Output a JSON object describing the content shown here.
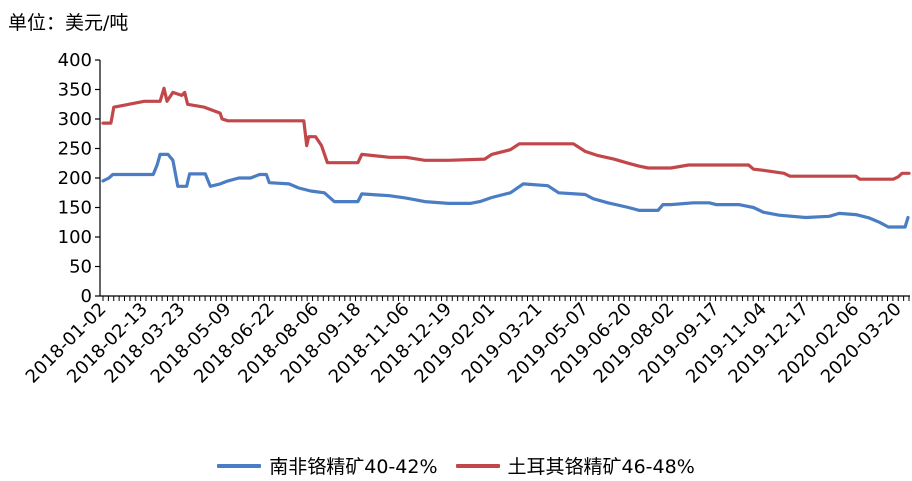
{
  "unit_label": "单位：美元/吨",
  "colors": {
    "series1": "#4a7dc4",
    "series2": "#c2474a",
    "axis": "#000000"
  },
  "chart_data": {
    "type": "line",
    "x_tick_labels": [
      "2018-01-02",
      "2018-02-13",
      "2018-03-23",
      "2018-05-09",
      "2018-06-22",
      "2018-08-06",
      "2018-09-18",
      "2018-11-06",
      "2018-12-19",
      "2019-02-01",
      "2019-03-21",
      "2019-05-07",
      "2019-06-20",
      "2019-08-02",
      "2019-09-17",
      "2019-11-04",
      "2019-12-17",
      "2020-02-06",
      "2020-03-20"
    ],
    "ylim": [
      0,
      400
    ],
    "y_ticks": [
      0,
      50,
      100,
      150,
      200,
      250,
      300,
      350,
      400
    ],
    "grid": false,
    "legend_position": "bottom",
    "series": [
      {
        "name": "南非铬精矿40-42%",
        "color": "#4a7dc4",
        "points": [
          [
            "2018-01-02",
            195
          ],
          [
            "2018-01-08",
            200
          ],
          [
            "2018-01-12",
            206
          ],
          [
            "2018-02-01",
            206
          ],
          [
            "2018-02-22",
            206
          ],
          [
            "2018-02-26",
            222
          ],
          [
            "2018-03-01",
            240
          ],
          [
            "2018-03-09",
            240
          ],
          [
            "2018-03-14",
            230
          ],
          [
            "2018-03-19",
            186
          ],
          [
            "2018-03-28",
            186
          ],
          [
            "2018-03-31",
            207
          ],
          [
            "2018-04-16",
            207
          ],
          [
            "2018-04-21",
            186
          ],
          [
            "2018-05-01",
            190
          ],
          [
            "2018-05-09",
            195
          ],
          [
            "2018-05-20",
            200
          ],
          [
            "2018-06-01",
            200
          ],
          [
            "2018-06-10",
            206
          ],
          [
            "2018-06-17",
            206
          ],
          [
            "2018-06-20",
            192
          ],
          [
            "2018-07-10",
            190
          ],
          [
            "2018-07-20",
            183
          ],
          [
            "2018-08-01",
            178
          ],
          [
            "2018-08-15",
            175
          ],
          [
            "2018-08-25",
            160
          ],
          [
            "2018-09-18",
            160
          ],
          [
            "2018-09-22",
            173
          ],
          [
            "2018-10-20",
            170
          ],
          [
            "2018-11-06",
            166
          ],
          [
            "2018-11-25",
            160
          ],
          [
            "2018-12-19",
            157
          ],
          [
            "2019-01-10",
            157
          ],
          [
            "2019-01-20",
            160
          ],
          [
            "2019-02-01",
            167
          ],
          [
            "2019-02-20",
            175
          ],
          [
            "2019-03-05",
            190
          ],
          [
            "2019-03-30",
            187
          ],
          [
            "2019-04-10",
            175
          ],
          [
            "2019-05-07",
            172
          ],
          [
            "2019-05-15",
            165
          ],
          [
            "2019-05-30",
            158
          ],
          [
            "2019-06-20",
            150
          ],
          [
            "2019-07-01",
            145
          ],
          [
            "2019-07-20",
            145
          ],
          [
            "2019-07-25",
            155
          ],
          [
            "2019-08-02",
            155
          ],
          [
            "2019-08-25",
            158
          ],
          [
            "2019-09-10",
            158
          ],
          [
            "2019-09-17",
            155
          ],
          [
            "2019-10-10",
            155
          ],
          [
            "2019-10-25",
            150
          ],
          [
            "2019-11-04",
            142
          ],
          [
            "2019-11-20",
            137
          ],
          [
            "2019-12-17",
            133
          ],
          [
            "2020-01-10",
            135
          ],
          [
            "2020-01-20",
            140
          ],
          [
            "2020-02-06",
            138
          ],
          [
            "2020-02-20",
            132
          ],
          [
            "2020-03-01",
            125
          ],
          [
            "2020-03-10",
            117
          ],
          [
            "2020-03-20",
            117
          ],
          [
            "2020-03-27",
            117
          ],
          [
            "2020-03-30",
            133
          ]
        ]
      },
      {
        "name": "土耳其铬精矿46-48%",
        "color": "#c2474a",
        "points": [
          [
            "2018-01-02",
            293
          ],
          [
            "2018-01-10",
            293
          ],
          [
            "2018-01-13",
            320
          ],
          [
            "2018-02-13",
            330
          ],
          [
            "2018-03-01",
            330
          ],
          [
            "2018-03-05",
            352
          ],
          [
            "2018-03-08",
            330
          ],
          [
            "2018-03-14",
            345
          ],
          [
            "2018-03-23",
            340
          ],
          [
            "2018-03-26",
            345
          ],
          [
            "2018-03-29",
            325
          ],
          [
            "2018-04-15",
            320
          ],
          [
            "2018-05-01",
            310
          ],
          [
            "2018-05-03",
            300
          ],
          [
            "2018-05-09",
            297
          ],
          [
            "2018-07-25",
            297
          ],
          [
            "2018-07-28",
            255
          ],
          [
            "2018-07-30",
            270
          ],
          [
            "2018-08-06",
            270
          ],
          [
            "2018-08-12",
            255
          ],
          [
            "2018-08-18",
            226
          ],
          [
            "2018-09-18",
            226
          ],
          [
            "2018-09-22",
            240
          ],
          [
            "2018-10-20",
            235
          ],
          [
            "2018-11-06",
            235
          ],
          [
            "2018-11-25",
            230
          ],
          [
            "2018-12-19",
            230
          ],
          [
            "2019-01-25",
            232
          ],
          [
            "2019-02-01",
            240
          ],
          [
            "2019-02-20",
            248
          ],
          [
            "2019-03-01",
            258
          ],
          [
            "2019-03-21",
            258
          ],
          [
            "2019-04-25",
            258
          ],
          [
            "2019-05-07",
            245
          ],
          [
            "2019-05-20",
            238
          ],
          [
            "2019-06-05",
            232
          ],
          [
            "2019-06-20",
            225
          ],
          [
            "2019-07-01",
            220
          ],
          [
            "2019-07-10",
            217
          ],
          [
            "2019-08-02",
            217
          ],
          [
            "2019-08-20",
            222
          ],
          [
            "2019-09-17",
            222
          ],
          [
            "2019-10-20",
            222
          ],
          [
            "2019-10-25",
            215
          ],
          [
            "2019-11-04",
            213
          ],
          [
            "2019-11-25",
            208
          ],
          [
            "2019-12-01",
            203
          ],
          [
            "2019-12-17",
            203
          ],
          [
            "2020-02-06",
            203
          ],
          [
            "2020-02-10",
            198
          ],
          [
            "2020-03-15",
            198
          ],
          [
            "2020-03-20",
            202
          ],
          [
            "2020-03-24",
            208
          ],
          [
            "2020-03-31",
            208
          ]
        ]
      }
    ]
  }
}
